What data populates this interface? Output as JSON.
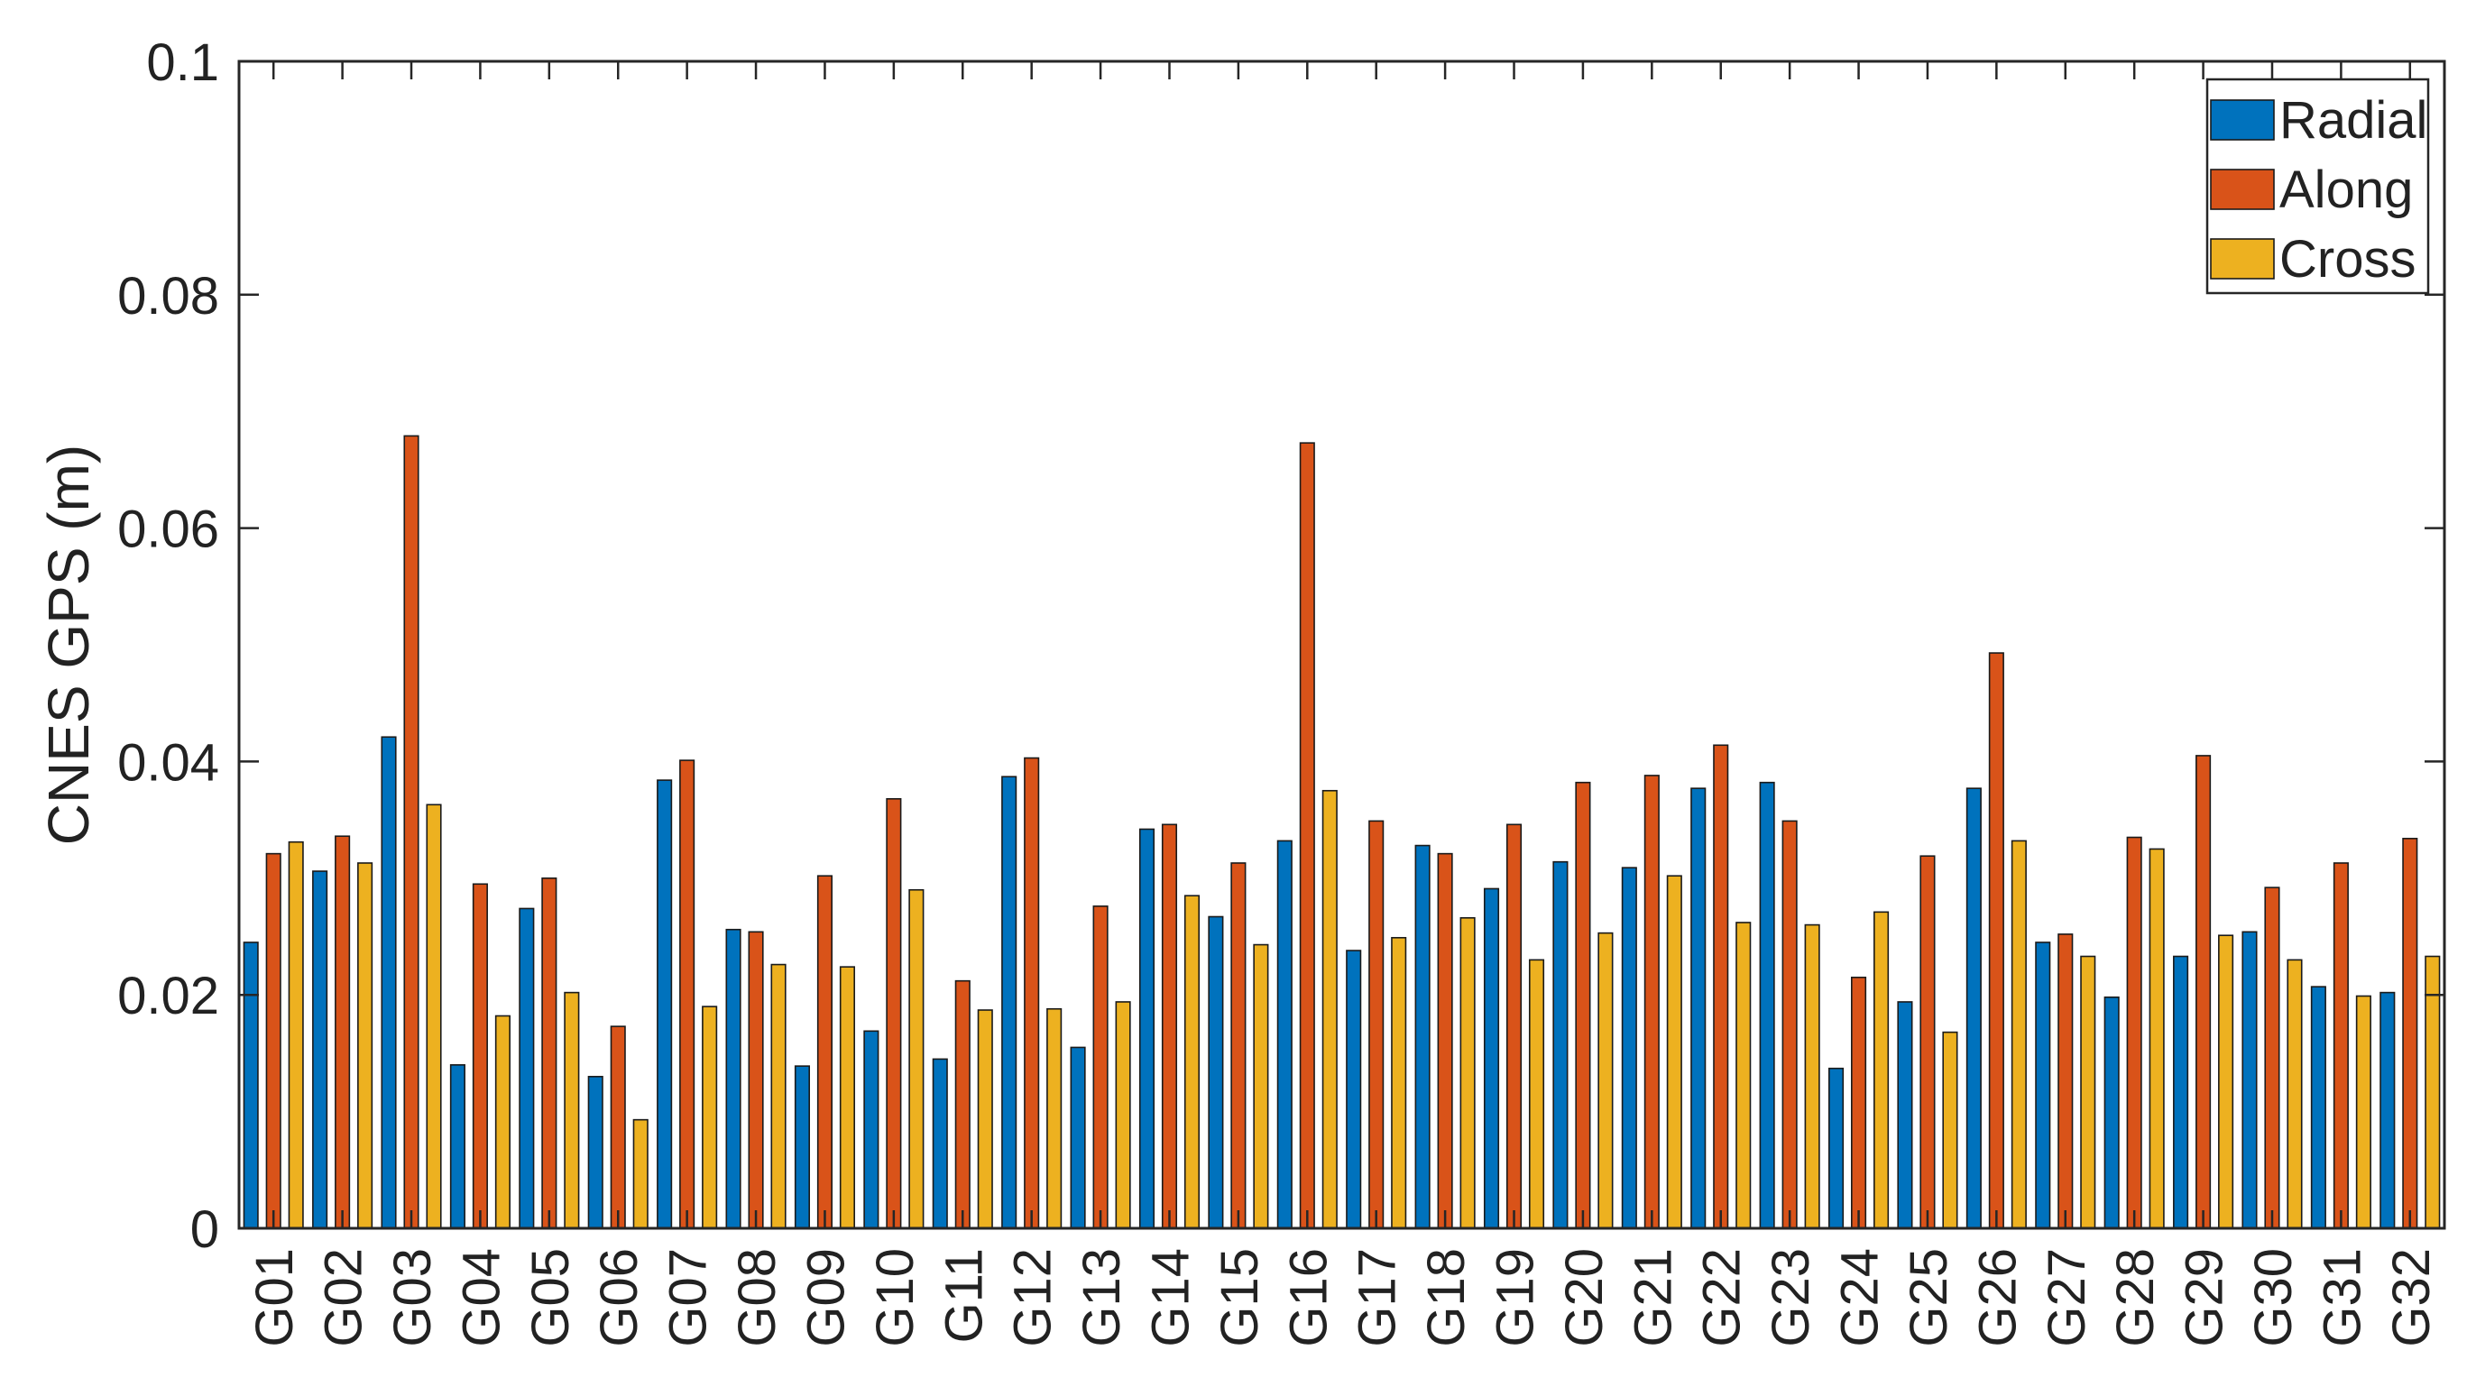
{
  "chart_data": {
    "type": "bar",
    "title": "",
    "xlabel": "",
    "ylabel": "CNES GPS (m)",
    "ylim": [
      0,
      0.1
    ],
    "yticks": [
      0,
      0.02,
      0.04,
      0.06,
      0.08,
      0.1
    ],
    "ytick_labels": [
      "0",
      "0.02",
      "0.04",
      "0.06",
      "0.08",
      "0.1"
    ],
    "grid": false,
    "legend_position": "top-right",
    "categories": [
      "G01",
      "G02",
      "G03",
      "G04",
      "G05",
      "G06",
      "G07",
      "G08",
      "G09",
      "G10",
      "G11",
      "G12",
      "G13",
      "G14",
      "G15",
      "G16",
      "G17",
      "G18",
      "G19",
      "G20",
      "G21",
      "G22",
      "G23",
      "G24",
      "G25",
      "G26",
      "G27",
      "G28",
      "G29",
      "G30",
      "G31",
      "G32"
    ],
    "series": [
      {
        "name": "Radial",
        "color": "#0072BD",
        "values": [
          0.0245,
          0.0306,
          0.0421,
          0.014,
          0.0274,
          0.013,
          0.0384,
          0.0256,
          0.0139,
          0.0169,
          0.0145,
          0.0387,
          0.0155,
          0.0342,
          0.0267,
          0.0332,
          0.0238,
          0.0328,
          0.0291,
          0.0314,
          0.0309,
          0.0377,
          0.0382,
          0.0137,
          0.0194,
          0.0377,
          0.0245,
          0.0198,
          0.0233,
          0.0254,
          0.0207,
          0.0202
        ]
      },
      {
        "name": "Along",
        "color": "#D95319",
        "values": [
          0.0321,
          0.0336,
          0.0679,
          0.0295,
          0.03,
          0.0173,
          0.0401,
          0.0254,
          0.0302,
          0.0368,
          0.0212,
          0.0403,
          0.0276,
          0.0346,
          0.0313,
          0.0673,
          0.0349,
          0.0321,
          0.0346,
          0.0382,
          0.0388,
          0.0414,
          0.0349,
          0.0215,
          0.0319,
          0.0493,
          0.0252,
          0.0335,
          0.0405,
          0.0292,
          0.0313,
          0.0334
        ]
      },
      {
        "name": "Cross",
        "color": "#EDB120",
        "values": [
          0.0331,
          0.0313,
          0.0363,
          0.0182,
          0.0202,
          0.0093,
          0.019,
          0.0226,
          0.0224,
          0.029,
          0.0187,
          0.0188,
          0.0194,
          0.0285,
          0.0243,
          0.0375,
          0.0249,
          0.0266,
          0.023,
          0.0253,
          0.0302,
          0.0262,
          0.026,
          0.0271,
          0.0168,
          0.0332,
          0.0233,
          0.0325,
          0.0251,
          0.023,
          0.0199,
          0.0233
        ]
      }
    ]
  }
}
